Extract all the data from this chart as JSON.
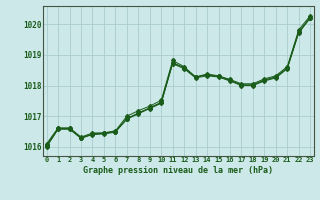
{
  "background_color": "#cce8e8",
  "grid_color": "#aacccc",
  "line_color": "#1a5c1a",
  "title": "Graphe pression niveau de la mer (hPa)",
  "ylabel_ticks": [
    1016,
    1017,
    1018,
    1019,
    1020
  ],
  "xlim": [
    -0.3,
    23.3
  ],
  "ylim": [
    1015.7,
    1020.6
  ],
  "series": [
    [
      1016.05,
      1016.6,
      1016.6,
      1016.3,
      1016.42,
      1016.44,
      1016.5,
      1016.92,
      1017.1,
      1017.27,
      1017.45,
      1018.75,
      1018.58,
      1018.28,
      1018.35,
      1018.3,
      1018.18,
      1018.02,
      1018.02,
      1018.18,
      1018.28,
      1018.57,
      1019.75,
      1020.22
    ],
    [
      1016.1,
      1016.62,
      1016.62,
      1016.32,
      1016.45,
      1016.46,
      1016.52,
      1017.0,
      1017.18,
      1017.33,
      1017.52,
      1018.82,
      1018.62,
      1018.28,
      1018.38,
      1018.32,
      1018.2,
      1018.06,
      1018.06,
      1018.22,
      1018.32,
      1018.62,
      1019.82,
      1020.28
    ],
    [
      1016.0,
      1016.58,
      1016.58,
      1016.28,
      1016.4,
      1016.42,
      1016.48,
      1016.9,
      1017.08,
      1017.25,
      1017.42,
      1018.72,
      1018.55,
      1018.25,
      1018.32,
      1018.28,
      1018.15,
      1018.0,
      1018.0,
      1018.15,
      1018.25,
      1018.55,
      1019.72,
      1020.2
    ],
    [
      1016.02,
      1016.58,
      1016.58,
      1016.28,
      1016.42,
      1016.44,
      1016.5,
      1016.92,
      1017.1,
      1017.27,
      1017.45,
      1018.75,
      1018.58,
      1018.28,
      1018.35,
      1018.3,
      1018.18,
      1018.02,
      1018.02,
      1018.18,
      1018.28,
      1018.57,
      1019.75,
      1020.22
    ]
  ]
}
